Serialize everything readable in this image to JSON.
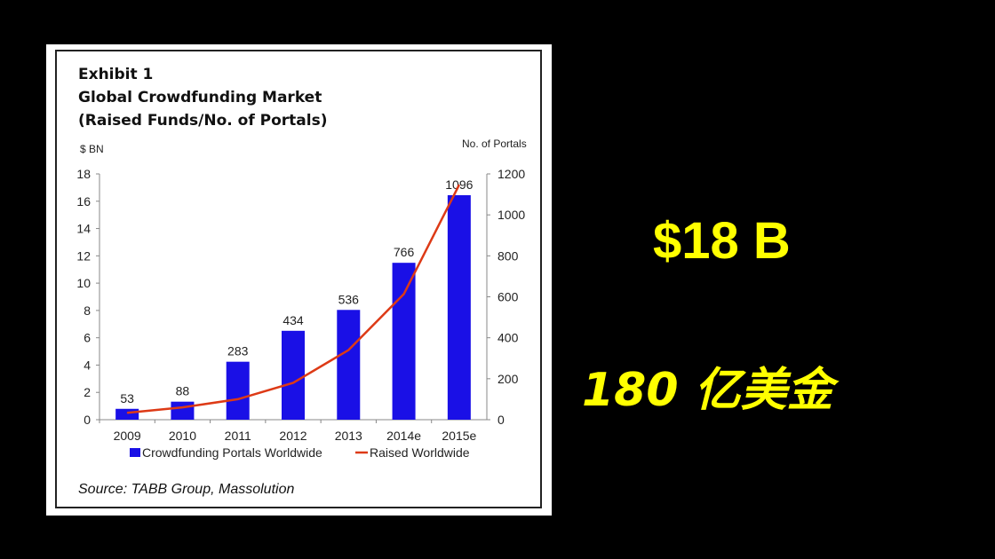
{
  "exhibit": {
    "label": "Exhibit 1",
    "title": "Global Crowdfunding Market",
    "subtitle": "(Raised Funds/No. of Portals)",
    "source": "Source: TABB Group, Massolution"
  },
  "callouts": {
    "amount_usd": "$18 B",
    "amount_cn": "180 亿美金"
  },
  "colors": {
    "bar": "#1a10e6",
    "line": "#dd3a16",
    "callout": "#ffff00",
    "background": "#000000"
  },
  "chart_data": {
    "type": "bar",
    "title": "Global Crowdfunding Market",
    "subtitle": "(Raised Funds/No. of Portals)",
    "categories": [
      "2009",
      "2010",
      "2011",
      "2012",
      "2013",
      "2014e",
      "2015e"
    ],
    "series": [
      {
        "name": "Crowdfunding Portals Worldwide",
        "type": "bar",
        "axis": "right",
        "values": [
          53,
          88,
          283,
          434,
          536,
          766,
          1096
        ],
        "labels": [
          "53",
          "88",
          "283",
          "434",
          "536",
          "766",
          "1096"
        ]
      },
      {
        "name": "Raised Worldwide",
        "type": "line",
        "axis": "left",
        "values": [
          0.5,
          0.9,
          1.5,
          2.7,
          5.1,
          9.2,
          17.2
        ]
      }
    ],
    "y_left": {
      "label": "$ BN",
      "range": [
        0,
        18
      ],
      "ticks": [
        0,
        2,
        4,
        6,
        8,
        10,
        12,
        14,
        16,
        18
      ]
    },
    "y_right": {
      "label": "No. of Portals",
      "range": [
        0,
        1200
      ],
      "ticks": [
        0,
        200,
        400,
        600,
        800,
        1000,
        1200
      ]
    },
    "grid": false,
    "legend": "bottom"
  }
}
